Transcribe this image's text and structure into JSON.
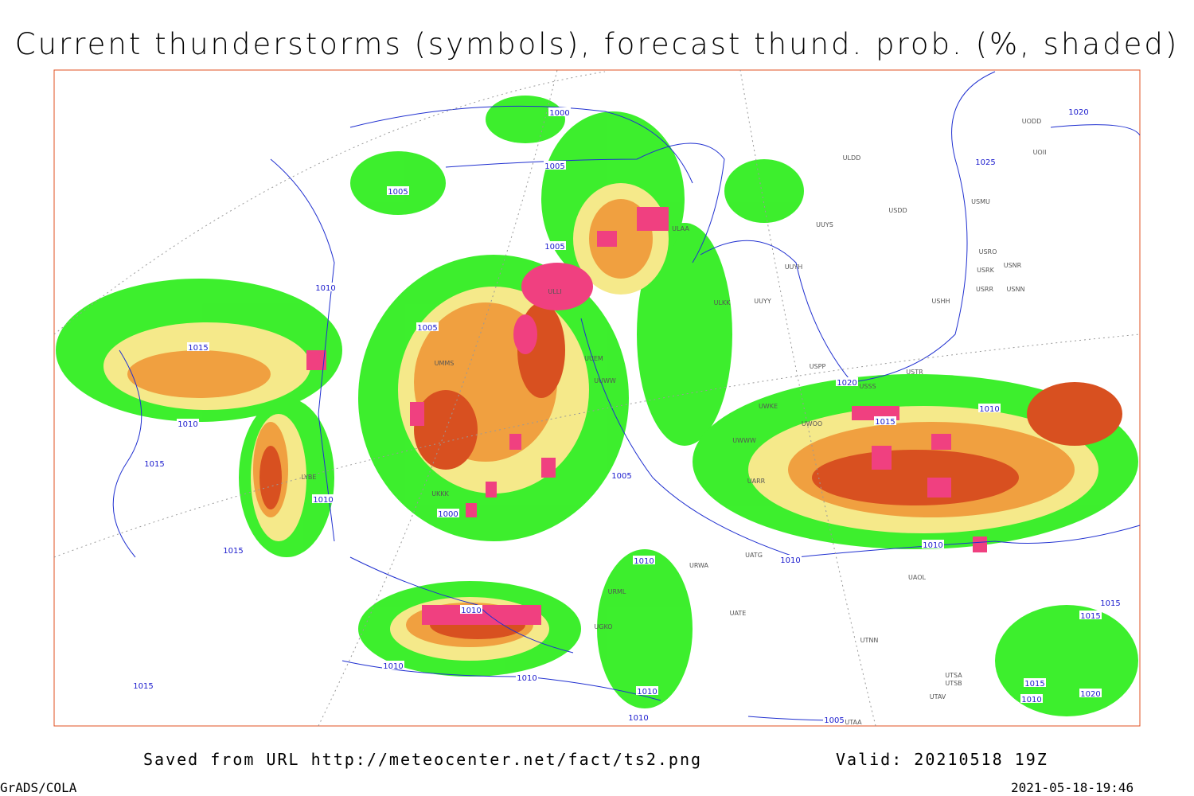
{
  "header": {
    "title": "Current thunderstorms (symbols), forecast thund. prob. (%, shaded)"
  },
  "isobar_labels": [
    "1000",
    "1005",
    "1005",
    "1005",
    "1010",
    "1005",
    "1015",
    "1010",
    "1015",
    "1010",
    "1000",
    "1005",
    "1015",
    "1010",
    "1020",
    "1025",
    "1020",
    "1010",
    "1010",
    "1010",
    "1015",
    "1010",
    "1010",
    "1010",
    "1015",
    "1010",
    "1010",
    "1005",
    "1015",
    "1015",
    "1015",
    "1020",
    "1010"
  ],
  "station_labels": [
    "ULDD",
    "USDD",
    "USMU",
    "UUYS",
    "UUYH",
    "UUYY",
    "ULKK",
    "USRO",
    "USRK",
    "USNR",
    "USRR",
    "USNN",
    "USHH",
    "UODD",
    "UOII",
    "ULLI",
    "ULAA",
    "UUEM",
    "UUWW",
    "UWKE",
    "UWOO",
    "UWWW",
    "UARR",
    "USSS",
    "USTR",
    "USPP",
    "UKKK",
    "UATG",
    "URWA",
    "UATE",
    "UAOL",
    "UTNN",
    "UTSA",
    "UTSB",
    "UTAV",
    "UTAA",
    "UGKO",
    "URML",
    "UMMS",
    "LYBE"
  ],
  "footer": {
    "source": "Saved from URL http://meteocenter.net/fact/ts2.png",
    "valid": "Valid: 20210518 19Z",
    "software": "GrADS/COLA",
    "timestamp": "2021-05-18-19:46"
  }
}
